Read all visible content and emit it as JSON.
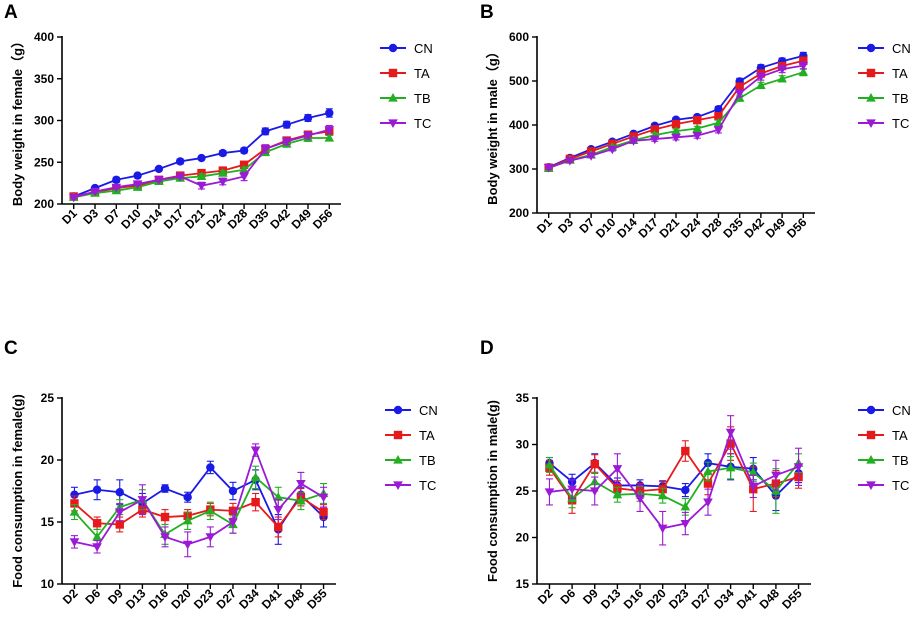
{
  "series_colors": {
    "CN": "#1a1ae6",
    "TA": "#e61a1a",
    "TB": "#22b022",
    "TC": "#9b1ad6"
  },
  "chart_data": [
    {
      "panel": "A",
      "type": "line",
      "xlabel": "",
      "ylabel": "Body weight in female（g）",
      "ylim": [
        200,
        400
      ],
      "yticks": [
        200,
        250,
        300,
        350,
        400
      ],
      "categories": [
        "D1",
        "D3",
        "D7",
        "D10",
        "D14",
        "D17",
        "D21",
        "D24",
        "D28",
        "D35",
        "D42",
        "D49",
        "D56"
      ],
      "legend_position": "right",
      "series": [
        {
          "name": "CN",
          "marker": "circle",
          "values": [
            209,
            219,
            229,
            234,
            242,
            251,
            255,
            261,
            264,
            287,
            295,
            303,
            309
          ],
          "errors": [
            2,
            2,
            3,
            2,
            2,
            3,
            2,
            3,
            3,
            4,
            4,
            4,
            5
          ]
        },
        {
          "name": "TA",
          "marker": "square",
          "values": [
            209,
            214,
            219,
            222,
            229,
            234,
            237,
            240,
            247,
            266,
            276,
            283,
            287
          ],
          "errors": [
            2,
            2,
            2,
            2,
            2,
            2,
            3,
            3,
            3,
            4,
            4,
            4,
            4
          ]
        },
        {
          "name": "TB",
          "marker": "triangle",
          "values": [
            208,
            213,
            216,
            220,
            227,
            231,
            233,
            237,
            241,
            262,
            272,
            279,
            279
          ],
          "errors": [
            2,
            2,
            2,
            2,
            2,
            2,
            3,
            3,
            3,
            4,
            4,
            4,
            3
          ]
        },
        {
          "name": "TC",
          "marker": "triangle-down",
          "values": [
            208,
            215,
            220,
            224,
            229,
            233,
            222,
            227,
            233,
            266,
            275,
            282,
            289
          ],
          "errors": [
            2,
            2,
            2,
            2,
            2,
            2,
            4,
            4,
            5,
            5,
            4,
            4,
            5
          ]
        }
      ]
    },
    {
      "panel": "B",
      "type": "line",
      "xlabel": "",
      "ylabel": "Body weight in male（g）",
      "ylim": [
        200,
        600
      ],
      "yticks": [
        200,
        300,
        400,
        500,
        600
      ],
      "categories": [
        "D1",
        "D3",
        "D7",
        "D10",
        "D14",
        "D17",
        "D21",
        "D24",
        "D28",
        "D35",
        "D42",
        "D49",
        "D56"
      ],
      "legend_position": "right",
      "series": [
        {
          "name": "CN",
          "marker": "circle",
          "values": [
            304,
            325,
            345,
            362,
            380,
            398,
            412,
            418,
            436,
            499,
            530,
            545,
            557
          ],
          "errors": [
            4,
            4,
            4,
            4,
            4,
            5,
            5,
            5,
            6,
            7,
            7,
            7,
            8
          ]
        },
        {
          "name": "TA",
          "marker": "square",
          "values": [
            303,
            323,
            340,
            357,
            374,
            390,
            402,
            411,
            420,
            487,
            517,
            534,
            546
          ],
          "errors": [
            4,
            4,
            4,
            4,
            4,
            5,
            5,
            5,
            6,
            7,
            7,
            7,
            8
          ]
        },
        {
          "name": "TB",
          "marker": "triangle",
          "values": [
            302,
            320,
            332,
            350,
            365,
            377,
            386,
            392,
            405,
            461,
            490,
            505,
            520
          ],
          "errors": [
            4,
            4,
            4,
            4,
            4,
            5,
            5,
            5,
            6,
            7,
            7,
            7,
            8
          ]
        },
        {
          "name": "TC",
          "marker": "triangle-down",
          "values": [
            303,
            319,
            330,
            345,
            364,
            368,
            372,
            376,
            389,
            472,
            510,
            527,
            535
          ],
          "errors": [
            4,
            4,
            4,
            4,
            5,
            5,
            6,
            6,
            7,
            8,
            8,
            8,
            8
          ]
        }
      ]
    },
    {
      "panel": "C",
      "type": "line",
      "xlabel": "",
      "ylabel": "Food consumption in female(g)",
      "ylim": [
        10,
        25
      ],
      "yticks": [
        10,
        15,
        20,
        25
      ],
      "categories": [
        "D2",
        "D6",
        "D9",
        "D13",
        "D16",
        "D20",
        "D23",
        "D27",
        "D34",
        "D41",
        "D48",
        "D55"
      ],
      "legend_position": "right",
      "series": [
        {
          "name": "CN",
          "marker": "circle",
          "values": [
            17.2,
            17.6,
            17.4,
            16.5,
            17.7,
            17.0,
            19.4,
            17.5,
            18.4,
            14.4,
            17.2,
            15.4
          ],
          "errors": [
            0.6,
            0.8,
            1.0,
            0.8,
            0.3,
            0.4,
            0.5,
            0.7,
            0.8,
            1.2,
            0.6,
            0.8
          ]
        },
        {
          "name": "TA",
          "marker": "square",
          "values": [
            16.5,
            14.9,
            14.8,
            16.0,
            15.4,
            15.5,
            16.0,
            15.9,
            16.6,
            14.6,
            17.0,
            15.8
          ],
          "errors": [
            0.6,
            0.5,
            0.6,
            0.6,
            0.6,
            0.5,
            0.5,
            0.6,
            0.7,
            0.8,
            0.7,
            0.6
          ]
        },
        {
          "name": "TB",
          "marker": "triangle",
          "values": [
            15.8,
            13.8,
            16.2,
            16.8,
            14.0,
            15.1,
            15.9,
            14.8,
            18.6,
            17.0,
            16.7,
            17.3
          ],
          "errors": [
            0.6,
            0.6,
            0.6,
            0.8,
            0.8,
            0.7,
            0.7,
            0.7,
            0.9,
            0.8,
            0.7,
            0.8
          ]
        },
        {
          "name": "TC",
          "marker": "triangle-down",
          "values": [
            13.4,
            13.0,
            15.8,
            16.8,
            13.8,
            13.2,
            13.8,
            15.0,
            20.8,
            16.0,
            18.1,
            17.0
          ],
          "errors": [
            0.5,
            0.5,
            0.7,
            1.2,
            0.8,
            1.0,
            0.8,
            0.9,
            0.5,
            0.8,
            0.9,
            0.8
          ]
        }
      ]
    },
    {
      "panel": "D",
      "type": "line",
      "xlabel": "",
      "ylabel": "Food consumption in male(g)",
      "ylim": [
        15,
        35
      ],
      "yticks": [
        15,
        20,
        25,
        30,
        35
      ],
      "categories": [
        "D2",
        "D6",
        "D9",
        "D13",
        "D16",
        "D20",
        "D23",
        "D27",
        "D34",
        "D41",
        "D48",
        "D55"
      ],
      "legend_position": "right",
      "series": [
        {
          "name": "CN",
          "marker": "circle",
          "values": [
            28.0,
            26.0,
            28.0,
            25.6,
            25.6,
            25.5,
            25.1,
            28.0,
            27.6,
            27.4,
            24.5,
            26.9
          ],
          "errors": [
            0.6,
            0.8,
            1.0,
            0.8,
            0.6,
            0.6,
            0.7,
            1.0,
            1.4,
            1.2,
            1.6,
            1.0
          ]
        },
        {
          "name": "TA",
          "marker": "square",
          "values": [
            27.5,
            24.0,
            27.9,
            25.3,
            25.0,
            25.2,
            29.3,
            25.8,
            30.1,
            25.2,
            25.8,
            26.5
          ],
          "errors": [
            0.8,
            1.4,
            1.0,
            0.8,
            0.8,
            0.8,
            1.1,
            1.2,
            1.8,
            2.4,
            1.4,
            1.2
          ]
        },
        {
          "name": "TB",
          "marker": "triangle",
          "values": [
            27.8,
            24.2,
            26.0,
            24.6,
            24.7,
            24.5,
            23.3,
            27.1,
            27.5,
            27.0,
            25.0,
            28.0
          ],
          "errors": [
            0.8,
            1.0,
            1.0,
            0.8,
            0.8,
            0.8,
            0.9,
            1.0,
            1.2,
            1.0,
            2.4,
            1.0
          ]
        },
        {
          "name": "TC",
          "marker": "triangle-down",
          "values": [
            24.9,
            25.2,
            25.0,
            27.4,
            24.2,
            21.0,
            21.5,
            23.8,
            31.3,
            25.5,
            26.7,
            27.6
          ],
          "errors": [
            1.4,
            1.0,
            1.5,
            1.6,
            1.4,
            1.8,
            1.2,
            1.4,
            1.8,
            1.2,
            1.6,
            2.0
          ]
        }
      ]
    }
  ]
}
